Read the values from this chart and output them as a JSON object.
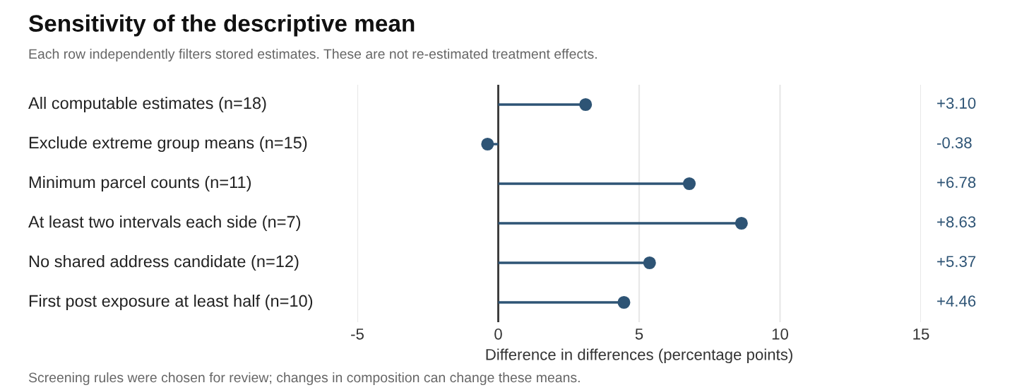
{
  "chart_data": {
    "type": "lollipop",
    "orientation": "horizontal",
    "title": "Sensitivity of the descriptive mean",
    "subtitle": "Each row independently filters stored estimates. These are not re-estimated treatment effects.",
    "xlabel": "Difference in differences (percentage points)",
    "categories": [
      "All computable estimates (n=18)",
      "Exclude extreme group means (n=15)",
      "Minimum parcel counts (n=11)",
      "At least two intervals each side (n=7)",
      "No shared address candidate (n=12)",
      "First post exposure at least half (n=10)"
    ],
    "values": [
      3.1,
      -0.38,
      6.78,
      8.63,
      5.37,
      4.46
    ],
    "value_labels": [
      "+3.10",
      "-0.38",
      "+6.78",
      "+8.63",
      "+5.37",
      "+4.46"
    ],
    "color": "#2e5475",
    "marker": "circle",
    "xlim": [
      -5,
      15
    ],
    "xticks": [
      -5,
      0,
      5,
      10,
      15
    ],
    "grid": "x",
    "ref_lines": [
      {
        "axis": "x",
        "value": 0,
        "color": "#333333"
      }
    ],
    "annotations": [
      "Screening rules were chosen for review; changes in composition can change these means."
    ]
  }
}
